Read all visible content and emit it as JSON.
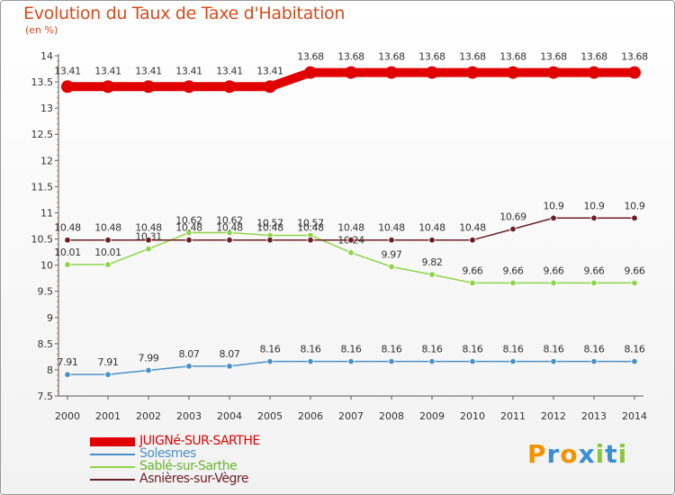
{
  "title": "Evolution du Taux de Taxe d'Habitation",
  "unit": "(en %)",
  "chart_data": {
    "type": "line",
    "x": [
      "2000",
      "2001",
      "2002",
      "2003",
      "2004",
      "2005",
      "2006",
      "2007",
      "2008",
      "2009",
      "2010",
      "2011",
      "2012",
      "2013",
      "2014"
    ],
    "ylim": [
      7.5,
      14
    ],
    "yticks": [
      "7.5",
      "8",
      "8.5",
      "9",
      "9.5",
      "10",
      "10.5",
      "11",
      "11.5",
      "12",
      "12.5",
      "13",
      "13.5",
      "14"
    ],
    "grid": false,
    "legend_position": "bottom-left",
    "series": [
      {
        "name": "JUIGNé-SUR-SARTHE",
        "color": "#e00000",
        "width": 10,
        "values": [
          13.41,
          13.41,
          13.41,
          13.41,
          13.41,
          13.41,
          13.68,
          13.68,
          13.68,
          13.68,
          13.68,
          13.68,
          13.68,
          13.68,
          13.68
        ],
        "labels": [
          "13.41",
          "13.41",
          "13.41",
          "13.41",
          "13.41",
          "13.41",
          "13.68",
          "13.68",
          "13.68",
          "13.68",
          "13.68",
          "13.68",
          "13.68",
          "13.68",
          "13.68"
        ]
      },
      {
        "name": "Solesmes",
        "color": "#4a90c8",
        "width": 1.5,
        "values": [
          7.91,
          7.91,
          7.99,
          8.07,
          8.07,
          8.16,
          8.16,
          8.16,
          8.16,
          8.16,
          8.16,
          8.16,
          8.16,
          8.16,
          8.16
        ],
        "labels": [
          "7.91",
          "7.91",
          "7.99",
          "8.07",
          "8.07",
          "8.16",
          "8.16",
          "8.16",
          "8.16",
          "8.16",
          "8.16",
          "8.16",
          "8.16",
          "8.16",
          "8.16"
        ]
      },
      {
        "name": "Sablé-sur-Sarthe",
        "color": "#8ed44a",
        "width": 1.5,
        "values": [
          10.01,
          10.01,
          10.31,
          10.62,
          10.62,
          10.57,
          10.57,
          10.24,
          9.97,
          9.82,
          9.66,
          9.66,
          9.66,
          9.66,
          9.66
        ],
        "labels": [
          "10.01",
          "10.01",
          "10.31",
          "10.62",
          "10.62",
          "10.57",
          "10.57",
          "10.24",
          "9.97",
          "9.82",
          "9.66",
          "9.66",
          "9.66",
          "9.66",
          "9.66"
        ]
      },
      {
        "name": "Asnières-sur-Vègre",
        "color": "#6b1f24",
        "width": 1.5,
        "values": [
          10.48,
          10.48,
          10.48,
          10.48,
          10.48,
          10.48,
          10.48,
          10.48,
          10.48,
          10.48,
          10.48,
          10.69,
          10.9,
          10.9,
          10.9
        ],
        "labels": [
          "10.48",
          "10.48",
          "10.48",
          "10.48",
          "10.48",
          "10.48",
          "10.48",
          "10.48",
          "10.48",
          "10.48",
          "10.48",
          "10.69",
          "10.9",
          "10.9",
          "10.9"
        ]
      }
    ]
  },
  "logo": {
    "letters": [
      "P",
      "r",
      "o",
      "x",
      "i",
      "t",
      "i"
    ],
    "colors": [
      "#f29400",
      "#3a8fd0",
      "#f29400",
      "#3a8fd0",
      "#8cc63f",
      "#3a8fd0",
      "#8cc63f"
    ]
  }
}
